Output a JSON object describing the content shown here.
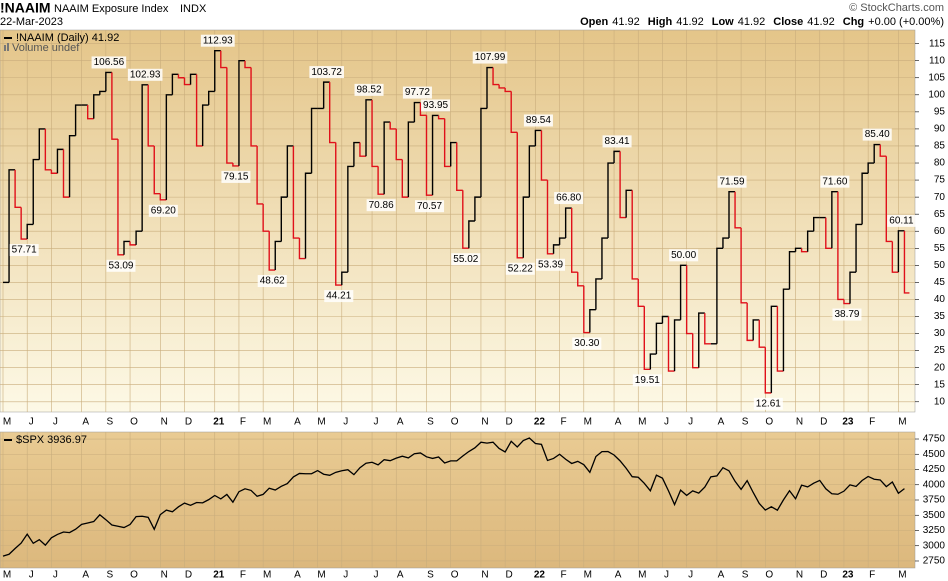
{
  "header": {
    "symbol": "!NAAIM",
    "name": "NAAIM Exposure Index",
    "exchange": "INDX",
    "date": "22-Mar-2023",
    "credit": "© StockCharts.com",
    "quote": [
      {
        "label": "Open",
        "value": "41.92"
      },
      {
        "label": "High",
        "value": "41.92"
      },
      {
        "label": "Low",
        "value": "41.92"
      },
      {
        "label": "Close",
        "value": "41.92"
      },
      {
        "label": "Chg",
        "value": "+0.00 (+0.00%)"
      }
    ]
  },
  "chart_data": [
    {
      "type": "step",
      "legend": "!NAAIM (Daily) 41.92",
      "volume_label": "Volume undef",
      "up_color": "#000000",
      "down_color": "#e0101a",
      "grid": true,
      "categories": [
        "M",
        null,
        null,
        null,
        "J",
        null,
        null,
        null,
        "J",
        null,
        null,
        null,
        null,
        "A",
        null,
        null,
        null,
        "S",
        null,
        null,
        null,
        "O",
        null,
        null,
        null,
        null,
        "N",
        null,
        null,
        null,
        "D",
        null,
        null,
        null,
        null,
        "21",
        null,
        null,
        null,
        "F",
        null,
        null,
        null,
        "M",
        null,
        null,
        null,
        null,
        "A",
        null,
        null,
        null,
        "M",
        null,
        null,
        null,
        "J",
        null,
        null,
        null,
        null,
        "J",
        null,
        null,
        null,
        "A",
        null,
        null,
        null,
        null,
        "S",
        null,
        null,
        null,
        "O",
        null,
        null,
        null,
        null,
        "N",
        null,
        null,
        null,
        "D",
        null,
        null,
        null,
        null,
        "22",
        null,
        null,
        null,
        "F",
        null,
        null,
        null,
        "M",
        null,
        null,
        null,
        null,
        "A",
        null,
        null,
        null,
        "M",
        null,
        null,
        null,
        "J",
        null,
        null,
        null,
        "J",
        null,
        null,
        null,
        null,
        "A",
        null,
        null,
        null,
        "S",
        null,
        null,
        null,
        "O",
        null,
        null,
        null,
        null,
        "N",
        null,
        null,
        null,
        "D",
        null,
        null,
        null,
        "23",
        null,
        null,
        null,
        "F",
        null,
        null,
        null,
        null,
        "M",
        null
      ],
      "values": [
        45,
        78,
        67,
        57.71,
        62,
        81,
        90,
        78,
        77,
        84,
        70,
        88,
        97,
        97,
        93,
        100,
        101,
        106.56,
        87,
        53.09,
        57,
        56,
        60,
        102.93,
        85,
        71,
        69.2,
        100,
        106,
        105,
        103,
        106,
        85,
        97,
        101,
        112.93,
        108,
        80,
        79.15,
        110,
        108,
        85,
        68,
        60,
        48.62,
        57,
        70,
        85,
        58,
        52,
        77,
        96,
        96,
        103.72,
        86,
        44.21,
        48,
        79,
        86,
        82,
        98.52,
        79,
        70.86,
        92,
        90,
        81,
        70,
        92,
        97.72,
        94,
        70.57,
        93.95,
        93,
        79,
        86,
        72,
        55.02,
        63,
        70,
        96,
        107.99,
        103,
        102,
        101,
        89,
        52.22,
        70,
        85,
        89.54,
        75,
        53.39,
        56,
        58,
        66.8,
        48,
        44,
        30.3,
        37,
        46,
        58,
        80,
        83.41,
        64,
        72,
        46,
        38,
        19.51,
        24,
        33,
        35,
        19,
        34,
        50,
        30,
        20,
        36,
        27,
        27,
        55,
        58,
        71.59,
        61,
        39,
        28,
        34,
        26,
        12.61,
        38,
        19,
        43,
        54,
        55,
        54,
        60,
        64,
        64,
        55,
        71.6,
        40,
        38.79,
        48,
        62,
        77,
        80,
        85.4,
        82,
        57,
        48,
        60.11,
        41.92
      ],
      "value_labels": [
        null,
        null,
        null,
        "57.71",
        null,
        null,
        null,
        null,
        null,
        null,
        null,
        null,
        null,
        null,
        null,
        null,
        null,
        "106.56",
        null,
        "53.09",
        null,
        null,
        null,
        "102.93",
        null,
        null,
        "69.20",
        null,
        null,
        null,
        null,
        null,
        null,
        null,
        null,
        "112.93",
        null,
        null,
        "79.15",
        null,
        null,
        null,
        null,
        null,
        "48.62",
        null,
        null,
        null,
        null,
        null,
        null,
        null,
        null,
        "103.72",
        null,
        "44.21",
        null,
        null,
        null,
        null,
        "98.52",
        null,
        "70.86",
        null,
        null,
        null,
        null,
        null,
        "97.72",
        null,
        "70.57",
        "93.95",
        null,
        null,
        null,
        null,
        "55.02",
        null,
        null,
        null,
        "107.99",
        null,
        null,
        null,
        null,
        "52.22",
        null,
        null,
        "89.54",
        null,
        "53.39",
        null,
        null,
        "66.80",
        null,
        null,
        "30.30",
        null,
        null,
        null,
        null,
        "83.41",
        null,
        null,
        null,
        null,
        "19.51",
        null,
        null,
        null,
        null,
        null,
        "50.00",
        null,
        null,
        null,
        null,
        null,
        null,
        null,
        "71.59",
        null,
        null,
        null,
        null,
        null,
        "12.61",
        null,
        null,
        null,
        null,
        null,
        null,
        null,
        null,
        null,
        null,
        "71.60",
        null,
        "38.79",
        null,
        null,
        null,
        null,
        "85.40",
        null,
        null,
        null,
        "60.11",
        null
      ],
      "ylim": [
        7,
        119
      ],
      "yticks": [
        10,
        15,
        20,
        25,
        30,
        35,
        40,
        45,
        50,
        55,
        60,
        65,
        70,
        75,
        80,
        85,
        90,
        95,
        100,
        105,
        110,
        115
      ]
    },
    {
      "type": "line",
      "legend": "$SPX 3936.97",
      "color": "#000000",
      "grid": true,
      "values": [
        2830,
        2860,
        2955,
        3044,
        3190,
        3040,
        3100,
        3010,
        3130,
        3185,
        3225,
        3215,
        3271,
        3350,
        3373,
        3397,
        3508,
        3427,
        3340,
        3320,
        3298,
        3348,
        3477,
        3483,
        3465,
        3270,
        3510,
        3585,
        3557,
        3638,
        3699,
        3663,
        3709,
        3703,
        3756,
        3824,
        3768,
        3841,
        3714,
        3886,
        3934,
        3907,
        3811,
        3842,
        3943,
        3913,
        3974,
        4019,
        4128,
        4185,
        4180,
        4181,
        4232,
        4173,
        4155,
        4204,
        4229,
        4247,
        4166,
        4280,
        4352,
        4369,
        4327,
        4411,
        4395,
        4436,
        4468,
        4441,
        4509,
        4522,
        4458,
        4432,
        4455,
        4357,
        4391,
        4391,
        4471,
        4545,
        4605,
        4697,
        4683,
        4698,
        4595,
        4538,
        4712,
        4620,
        4725,
        4766,
        4677,
        4662,
        4398,
        4431,
        4500,
        4418,
        4349,
        4384,
        4329,
        4204,
        4463,
        4543,
        4545,
        4488,
        4392,
        4271,
        4132,
        4123,
        4023,
        3901,
        4158,
        4108,
        3900,
        3675,
        3912,
        3825,
        3899,
        3863,
        3961,
        4130,
        4145,
        4280,
        4228,
        4057,
        3924,
        4067,
        3873,
        3693,
        3585,
        3639,
        3583,
        3752,
        3901,
        3770,
        3993,
        3965,
        4026,
        4071,
        3934,
        3852,
        3844,
        3895,
        3999,
        3972,
        4070,
        4136,
        4090,
        4079,
        3970,
        4045,
        3861,
        3936.97
      ],
      "ylim": [
        2635,
        4865
      ],
      "yticks": [
        2750,
        3000,
        3250,
        3500,
        3750,
        4000,
        4250,
        4500,
        4750
      ]
    }
  ]
}
